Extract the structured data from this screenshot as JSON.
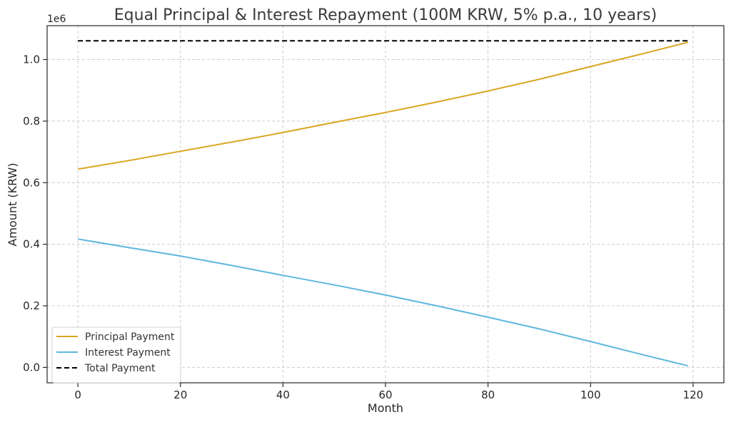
{
  "chart_data": {
    "type": "line",
    "title": "Equal Principal & Interest Repayment (100M KRW, 5% p.a., 10 years)",
    "xlabel": "Month",
    "ylabel": "Amount (KRW)",
    "y_offset_label": "1e6",
    "xlim": [
      -6,
      126
    ],
    "ylim": [
      -50000,
      1110000
    ],
    "x_ticks": [
      0,
      20,
      40,
      60,
      80,
      100,
      120
    ],
    "y_ticks": [
      0,
      200000,
      400000,
      600000,
      800000,
      1000000
    ],
    "y_tick_labels": [
      "0.0",
      "0.2",
      "0.4",
      "0.6",
      "0.8",
      "1.0"
    ],
    "grid": true,
    "legend_position": "lower-left",
    "series": [
      {
        "name": "Principal Payment",
        "color": "#DAA520",
        "style": "solid",
        "x": [
          0,
          10,
          20,
          30,
          40,
          50,
          60,
          70,
          80,
          90,
          100,
          110,
          119
        ],
        "values": [
          644000,
          672000,
          702000,
          732000,
          763000,
          796000,
          828000,
          862000,
          898000,
          936000,
          977000,
          1018000,
          1056000
        ]
      },
      {
        "name": "Interest Payment",
        "color": "#5DB7DE",
        "style": "solid",
        "x": [
          0,
          10,
          20,
          30,
          40,
          50,
          60,
          70,
          80,
          90,
          100,
          110,
          119
        ],
        "values": [
          417000,
          389000,
          362000,
          331000,
          299000,
          268000,
          235000,
          200000,
          163000,
          125000,
          84000,
          42000,
          5000
        ]
      },
      {
        "name": "Total Payment",
        "color": "#000000",
        "style": "dashed",
        "x": [
          0,
          119
        ],
        "values": [
          1061000,
          1061000
        ]
      }
    ]
  }
}
